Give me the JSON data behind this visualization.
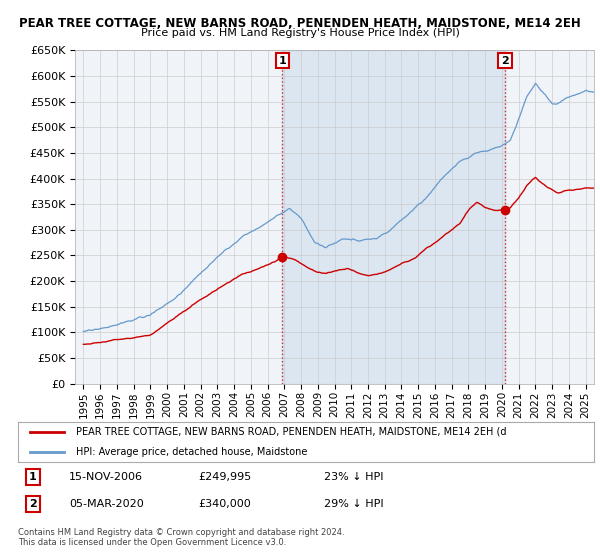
{
  "title1": "PEAR TREE COTTAGE, NEW BARNS ROAD, PENENDEN HEATH, MAIDSTONE, ME14 2EH",
  "title2": "Price paid vs. HM Land Registry's House Price Index (HPI)",
  "legend_red": "PEAR TREE COTTAGE, NEW BARNS ROAD, PENENDEN HEATH, MAIDSTONE, ME14 2EH (d",
  "legend_blue": "HPI: Average price, detached house, Maidstone",
  "footer": "Contains HM Land Registry data © Crown copyright and database right 2024.\nThis data is licensed under the Open Government Licence v3.0.",
  "annotation1_date": "15-NOV-2006",
  "annotation1_price": "£249,995",
  "annotation1_hpi": "23% ↓ HPI",
  "annotation2_date": "05-MAR-2020",
  "annotation2_price": "£340,000",
  "annotation2_hpi": "29% ↓ HPI",
  "red_color": "#cc0000",
  "blue_color": "#6699cc",
  "fill_color": "#ddeeff",
  "background_color": "#ffffff",
  "grid_color": "#cccccc",
  "ylim_min": 0,
  "ylim_max": 650000
}
